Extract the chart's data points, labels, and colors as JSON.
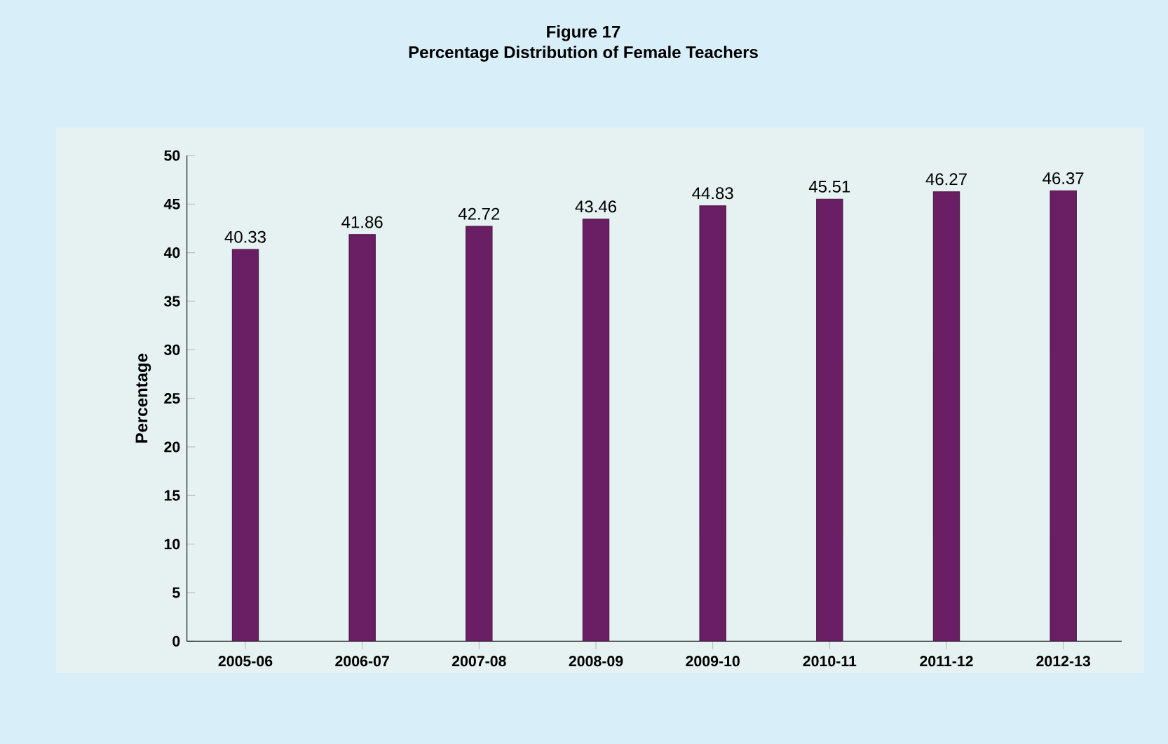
{
  "chart_data": {
    "type": "bar",
    "title": "Figure 17",
    "subtitle": "Percentage Distribution of Female Teachers",
    "ylabel": "Percentage",
    "categories": [
      "2005-06",
      "2006-07",
      "2007-08",
      "2008-09",
      "2009-10",
      "2010-11",
      "2011-12",
      "2012-13"
    ],
    "values": [
      40.33,
      41.86,
      42.72,
      43.46,
      44.83,
      45.51,
      46.27,
      46.37
    ],
    "color": "#6a1e63",
    "ylim": [
      0,
      50
    ],
    "yticks": [
      0,
      5,
      10,
      15,
      20,
      25,
      30,
      35,
      40,
      45,
      50
    ],
    "grid": false,
    "data_labels": true
  }
}
